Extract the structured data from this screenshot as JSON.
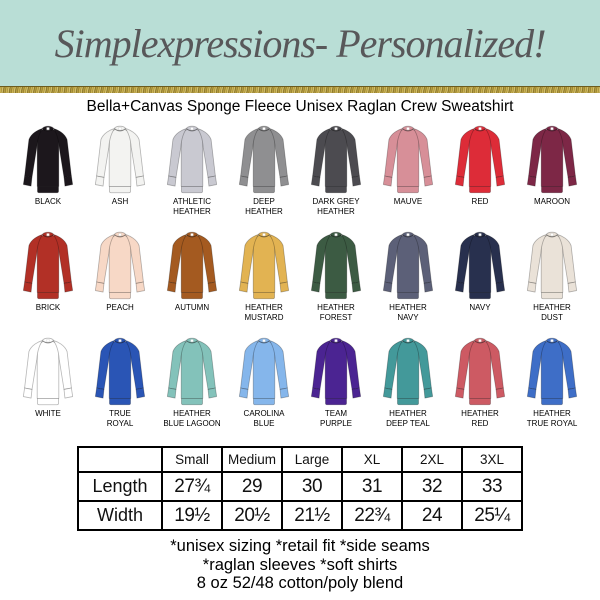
{
  "theme": {
    "banner_bg": "#b9ded6",
    "banner_text": "#58585a",
    "glitter_gold": "#c3a94a",
    "text": "#000000"
  },
  "header": {
    "brand": "Simplexpressions- Personalized!"
  },
  "product": {
    "title": "Bella+Canvas Sponge Fleece Unisex Raglan Crew Sweatshirt"
  },
  "colors": [
    {
      "name": "Black",
      "label": "BLACK",
      "hex": "#1c171c"
    },
    {
      "name": "Ash",
      "label": "ASH",
      "hex": "#f3f3f1"
    },
    {
      "name": "Athletic Heather",
      "label": "ATHLETIC\nHEATHER",
      "hex": "#c9c9d1"
    },
    {
      "name": "Deep Heather",
      "label": "DEEP\nHEATHER",
      "hex": "#8f8f91"
    },
    {
      "name": "Dark Grey Heather",
      "label": "DARK GREY\nHEATHER",
      "hex": "#4c4b50"
    },
    {
      "name": "Mauve",
      "label": "MAUVE",
      "hex": "#d78f98"
    },
    {
      "name": "Red",
      "label": "RED",
      "hex": "#dd2c38"
    },
    {
      "name": "Maroon",
      "label": "MAROON",
      "hex": "#7d2746"
    },
    {
      "name": "Brick",
      "label": "BRICK",
      "hex": "#b23026"
    },
    {
      "name": "Peach",
      "label": "PEACH",
      "hex": "#f7d8c6"
    },
    {
      "name": "Autumn",
      "label": "AUTUMN",
      "hex": "#a45a20"
    },
    {
      "name": "Heather Mustard",
      "label": "HEATHER\nMUSTARD",
      "hex": "#e2b352"
    },
    {
      "name": "Heather Forest",
      "label": "HEATHER\nFOREST",
      "hex": "#3c5b43"
    },
    {
      "name": "Heather Navy",
      "label": "HEATHER\nNAVY",
      "hex": "#5c6078"
    },
    {
      "name": "Navy",
      "label": "NAVY",
      "hex": "#28304e"
    },
    {
      "name": "Heather Dust",
      "label": "HEATHER\nDUST",
      "hex": "#eae2d8"
    },
    {
      "name": "White",
      "label": "WHITE",
      "hex": "#ffffff"
    },
    {
      "name": "True Royal",
      "label": "TRUE\nROYAL",
      "hex": "#2a55b5"
    },
    {
      "name": "Heather Blue Lagoon",
      "label": "HEATHER\nBLUE LAGOON",
      "hex": "#83c2ba"
    },
    {
      "name": "Carolina Blue",
      "label": "CAROLINA\nBLUE",
      "hex": "#85b6eb"
    },
    {
      "name": "Team Purple",
      "label": "TEAM\nPURPLE",
      "hex": "#4b2492"
    },
    {
      "name": "Heather Deep Teal",
      "label": "HEATHER\nDEEP TEAL",
      "hex": "#43999a"
    },
    {
      "name": "Heather Red",
      "label": "HEATHER\nRED",
      "hex": "#cd5a63"
    },
    {
      "name": "Heather True Royal",
      "label": "HEATHER\nTRUE ROYAL",
      "hex": "#3e6ec7"
    }
  ],
  "size_chart": {
    "corner": "",
    "columns": [
      "Small",
      "Medium",
      "Large",
      "XL",
      "2XL",
      "3XL"
    ],
    "rows": [
      {
        "label": "Length",
        "values": [
          "27¾",
          "29",
          "30",
          "31",
          "32",
          "33"
        ]
      },
      {
        "label": "Width",
        "values": [
          "19½",
          "20½",
          "21½",
          "22¾",
          "24",
          "25¼"
        ]
      }
    ]
  },
  "notes": [
    "*unisex sizing *retail fit *side seams",
    "*raglan sleeves *soft shirts",
    "8 oz 52/48 cotton/poly blend"
  ]
}
